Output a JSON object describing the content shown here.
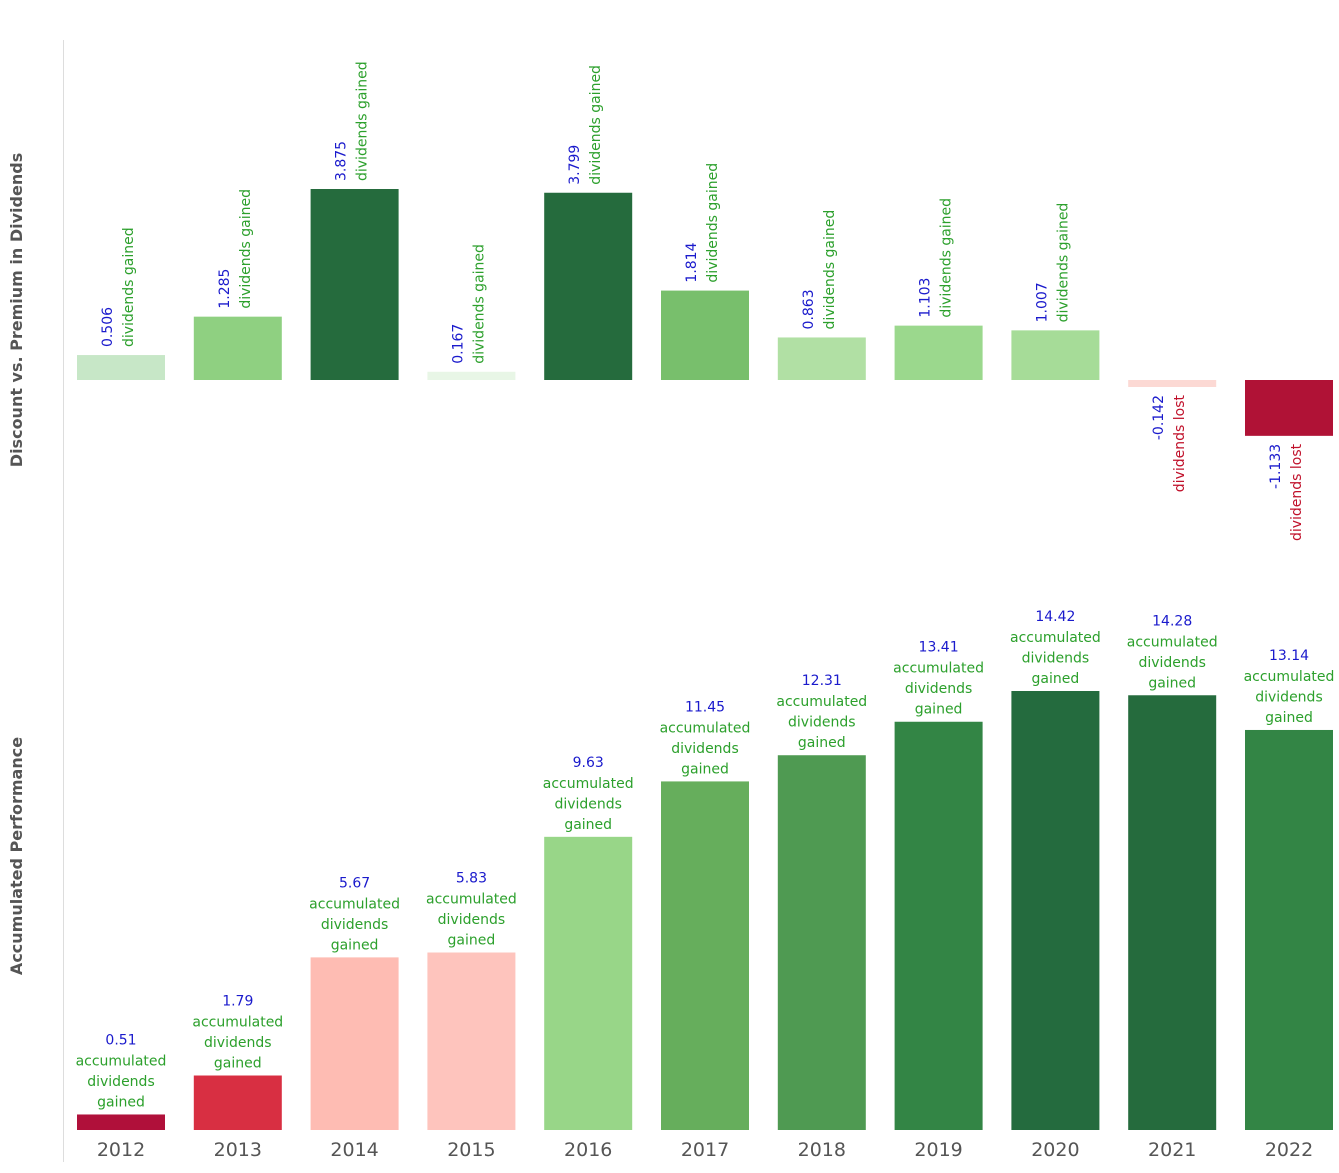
{
  "chart_data": [
    {
      "type": "bar",
      "ylabel": "Discount vs. Premium in Dividends",
      "categories": [
        "2012",
        "2013",
        "2014",
        "2015",
        "2016",
        "2017",
        "2018",
        "2019",
        "2020",
        "2021",
        "2022"
      ],
      "values": [
        0.506,
        1.285,
        3.875,
        0.167,
        3.799,
        1.814,
        0.863,
        1.103,
        1.007,
        -0.142,
        -1.133
      ],
      "value_labels": [
        "0.506",
        "1.285",
        "3.875",
        "0.167",
        "3.799",
        "1.814",
        "0.863",
        "1.103",
        "1.007",
        "-0.142",
        "-1.133"
      ],
      "gain_text": "dividends gained",
      "loss_text": "dividends lost",
      "colors": [
        "#c7e7c7",
        "#8fd081",
        "#256b3d",
        "#e8f6e6",
        "#256b3d",
        "#78bf6c",
        "#b1e0a4",
        "#9bd88d",
        "#a6dc98",
        "#fcd9d4",
        "#b01236"
      ],
      "ylim": [
        -4.2,
        4.2
      ]
    },
    {
      "type": "bar",
      "ylabel": "Accumulated Performance",
      "categories": [
        "2012",
        "2013",
        "2014",
        "2015",
        "2016",
        "2017",
        "2018",
        "2019",
        "2020",
        "2021",
        "2022"
      ],
      "values": [
        0.51,
        1.79,
        5.67,
        5.83,
        9.63,
        11.45,
        12.31,
        13.41,
        14.42,
        14.28,
        13.14
      ],
      "value_labels": [
        "0.51",
        "1.79",
        "5.67",
        "5.83",
        "9.63",
        "11.45",
        "12.31",
        "13.41",
        "14.42",
        "14.28",
        "13.14"
      ],
      "label_lines": [
        "accumulated",
        "dividends",
        "gained"
      ],
      "colors": [
        "#b0103a",
        "#d82f42",
        "#febcb3",
        "#fec4bd",
        "#98d688",
        "#66ae5c",
        "#4f9a52",
        "#338545",
        "#246b3e",
        "#256b3d",
        "#338545"
      ],
      "ylim": [
        0,
        14.42
      ]
    }
  ],
  "colors": {
    "value_text": "#1a1acc",
    "gain_text": "#2ca02c",
    "loss_text": "#c0102a",
    "axis_title": "#555555",
    "tick_text": "#555555"
  }
}
